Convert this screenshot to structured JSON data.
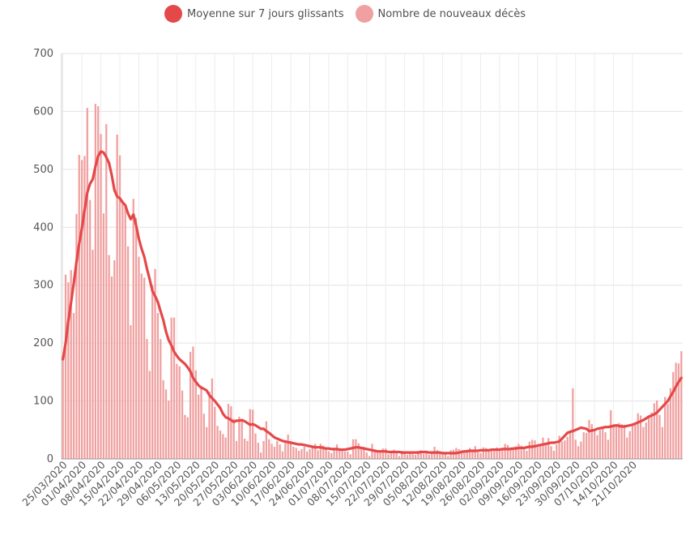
{
  "chart_data": {
    "type": "bar",
    "title": "",
    "xlabel": "",
    "ylabel": "",
    "ylim": [
      0,
      700
    ],
    "yticks": [
      0,
      100,
      200,
      300,
      400,
      500,
      600,
      700
    ],
    "grid": true,
    "legend_position": "top-center",
    "start_date": "25/03/2020",
    "x_tick_labels": [
      "25/03/2020",
      "01/04/2020",
      "08/04/2020",
      "15/04/2020",
      "22/04/2020",
      "29/04/2020",
      "06/05/2020",
      "13/05/2020",
      "20/05/2020",
      "27/05/2020",
      "03/06/2020",
      "10/06/2020",
      "17/06/2020",
      "24/06/2020",
      "01/07/2020",
      "08/07/2020",
      "15/07/2020",
      "22/07/2020",
      "29/07/2020",
      "05/08/2020",
      "12/08/2020",
      "19/08/2020",
      "26/08/2020",
      "02/09/2020",
      "09/09/2020",
      "16/09/2020",
      "23/09/2020",
      "30/09/2020",
      "07/10/2020",
      "14/10/2020",
      "21/10/2020"
    ],
    "series": [
      {
        "name": "Nombre de nouveaux décès",
        "type": "bar",
        "color": "#f0a0a0",
        "values": [
          172,
          318,
          305,
          326,
          252,
          423,
          525,
          516,
          523,
          606,
          447,
          361,
          613,
          609,
          561,
          424,
          578,
          352,
          315,
          343,
          560,
          524,
          446,
          440,
          367,
          231,
          449,
          416,
          349,
          320,
          313,
          207,
          152,
          300,
          328,
          252,
          207,
          136,
          120,
          101,
          244,
          244,
          164,
          160,
          118,
          76,
          72,
          185,
          194,
          153,
          111,
          126,
          78,
          55,
          116,
          139,
          90,
          57,
          49,
          43,
          37,
          95,
          91,
          69,
          31,
          73,
          69,
          35,
          31,
          86,
          85,
          44,
          28,
          11,
          31,
          65,
          34,
          26,
          21,
          31,
          25,
          13,
          31,
          42,
          31,
          21,
          19,
          14,
          17,
          21,
          13,
          17,
          23,
          26,
          15,
          26,
          23,
          17,
          13,
          10,
          16,
          25,
          15,
          15,
          13,
          13,
          8,
          34,
          34,
          27,
          21,
          21,
          11,
          5,
          26,
          15,
          13,
          12,
          18,
          18,
          8,
          14,
          16,
          12,
          5,
          14,
          10,
          7,
          13,
          8,
          7,
          14,
          15,
          9,
          12,
          7,
          10,
          21,
          15,
          11,
          9,
          12,
          5,
          15,
          16,
          19,
          17,
          15,
          12,
          16,
          19,
          14,
          22,
          11,
          10,
          20,
          19,
          17,
          15,
          14,
          20,
          18,
          15,
          26,
          24,
          20,
          18,
          22,
          26,
          23,
          17,
          14,
          30,
          33,
          32,
          23,
          24,
          37,
          25,
          36,
          22,
          14,
          25,
          40,
          30,
          32,
          38,
          48,
          122,
          33,
          22,
          30,
          46,
          45,
          67,
          60,
          51,
          41,
          50,
          54,
          46,
          33,
          84,
          60,
          56,
          62,
          60,
          59,
          37,
          48,
          57,
          60,
          79,
          75,
          55,
          63,
          74,
          80,
          96,
          101,
          76,
          55,
          107,
          95,
          122,
          150,
          166,
          165,
          186
        ]
      },
      {
        "name": "Moyenne sur 7 jours glissants",
        "type": "line",
        "color": "#e54848",
        "values": [
          172,
          200,
          238,
          270,
          303,
          340,
          372,
          398,
          430,
          460,
          475,
          483,
          505,
          523,
          531,
          529,
          521,
          511,
          490,
          464,
          453,
          450,
          443,
          438,
          424,
          414,
          422,
          403,
          380,
          363,
          349,
          328,
          310,
          290,
          281,
          271,
          255,
          240,
          220,
          205,
          196,
          185,
          178,
          172,
          168,
          164,
          158,
          151,
          140,
          133,
          127,
          123,
          121,
          118,
          110,
          105,
          100,
          94,
          88,
          78,
          72,
          70,
          67,
          64,
          66,
          66,
          67,
          65,
          62,
          59,
          60,
          58,
          55,
          52,
          52,
          48,
          45,
          41,
          37,
          35,
          33,
          31,
          30,
          29,
          28,
          27,
          26,
          25,
          25,
          24,
          23,
          22,
          21,
          20,
          20,
          20,
          19,
          18,
          18,
          17,
          17,
          17,
          16,
          16,
          16,
          17,
          18,
          19,
          20,
          20,
          19,
          18,
          17,
          16,
          15,
          14,
          13,
          13,
          13,
          13,
          12,
          12,
          12,
          12,
          12,
          11,
          11,
          11,
          11,
          11,
          11,
          11,
          12,
          12,
          12,
          11,
          11,
          11,
          11,
          11,
          10,
          10,
          10,
          10,
          10,
          10,
          11,
          12,
          13,
          13,
          14,
          14,
          14,
          14,
          15,
          15,
          15,
          15,
          16,
          16,
          16,
          16,
          17,
          17,
          17,
          17,
          18,
          18,
          19,
          19,
          19,
          20,
          21,
          21,
          22,
          23,
          24,
          25,
          26,
          27,
          28,
          28,
          29,
          30,
          35,
          40,
          45,
          47,
          48,
          50,
          52,
          54,
          53,
          52,
          48,
          49,
          50,
          52,
          53,
          54,
          55,
          55,
          56,
          57,
          58,
          57,
          56,
          56,
          57,
          58,
          59,
          61,
          63,
          65,
          67,
          70,
          73,
          75,
          77,
          80,
          85,
          90,
          95,
          100,
          108,
          116,
          125,
          133,
          140
        ]
      }
    ]
  }
}
